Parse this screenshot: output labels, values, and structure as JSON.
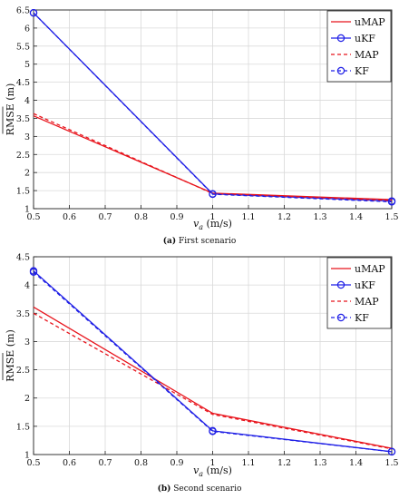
{
  "chart_data": [
    {
      "type": "line",
      "caption_label": "(a)",
      "caption_text": "First scenario",
      "xlabel": "v_a (m/s)",
      "ylabel": "RMSE (m)",
      "xlim": [
        0.5,
        1.5
      ],
      "ylim": [
        1,
        6.5
      ],
      "x_ticks": [
        "0.5",
        "0.6",
        "0.7",
        "0.8",
        "0.9",
        "1",
        "1.1",
        "1.2",
        "1.3",
        "1.4",
        "1.5"
      ],
      "y_ticks": [
        "1",
        "1.5",
        "2",
        "2.5",
        "3",
        "3.5",
        "4",
        "4.5",
        "5",
        "5.5",
        "6",
        "6.5"
      ],
      "grid": true,
      "legend_position": "top-right",
      "x": [
        0.5,
        1,
        1.5
      ],
      "series": [
        {
          "name": "uMAP",
          "values": [
            3.57,
            1.43,
            1.25
          ],
          "color": "#e8141c",
          "style": "solid",
          "marker": "none"
        },
        {
          "name": "uKF",
          "values": [
            6.42,
            1.41,
            1.21
          ],
          "color": "#1f1fe6",
          "style": "solid",
          "marker": "circle"
        },
        {
          "name": "MAP",
          "values": [
            3.63,
            1.42,
            1.23
          ],
          "color": "#e8141c",
          "style": "dashed",
          "marker": "none"
        },
        {
          "name": "KF",
          "values": [
            6.42,
            1.4,
            1.19
          ],
          "color": "#1f1fe6",
          "style": "dashed",
          "marker": "circle"
        }
      ]
    },
    {
      "type": "line",
      "caption_label": "(b)",
      "caption_text": "Second scenario",
      "xlabel": "v_a (m/s)",
      "ylabel": "RMSE (m)",
      "xlim": [
        0.5,
        1.5
      ],
      "ylim": [
        1,
        4.5
      ],
      "x_ticks": [
        "0.5",
        "0.6",
        "0.7",
        "0.8",
        "0.9",
        "1",
        "1.1",
        "1.2",
        "1.3",
        "1.4",
        "1.5"
      ],
      "y_ticks": [
        "1",
        "1.5",
        "2",
        "2.5",
        "3",
        "3.5",
        "4",
        "4.5"
      ],
      "grid": true,
      "legend_position": "top-right",
      "x": [
        0.5,
        1,
        1.5
      ],
      "series": [
        {
          "name": "uMAP",
          "values": [
            3.61,
            1.73,
            1.11
          ],
          "color": "#e8141c",
          "style": "solid",
          "marker": "none"
        },
        {
          "name": "uKF",
          "values": [
            4.25,
            1.42,
            1.05
          ],
          "color": "#1f1fe6",
          "style": "solid",
          "marker": "circle"
        },
        {
          "name": "MAP",
          "values": [
            3.5,
            1.71,
            1.1
          ],
          "color": "#e8141c",
          "style": "dashed",
          "marker": "none"
        },
        {
          "name": "KF",
          "values": [
            4.23,
            1.41,
            1.05
          ],
          "color": "#1f1fe6",
          "style": "dashed",
          "marker": "circle"
        }
      ]
    }
  ]
}
